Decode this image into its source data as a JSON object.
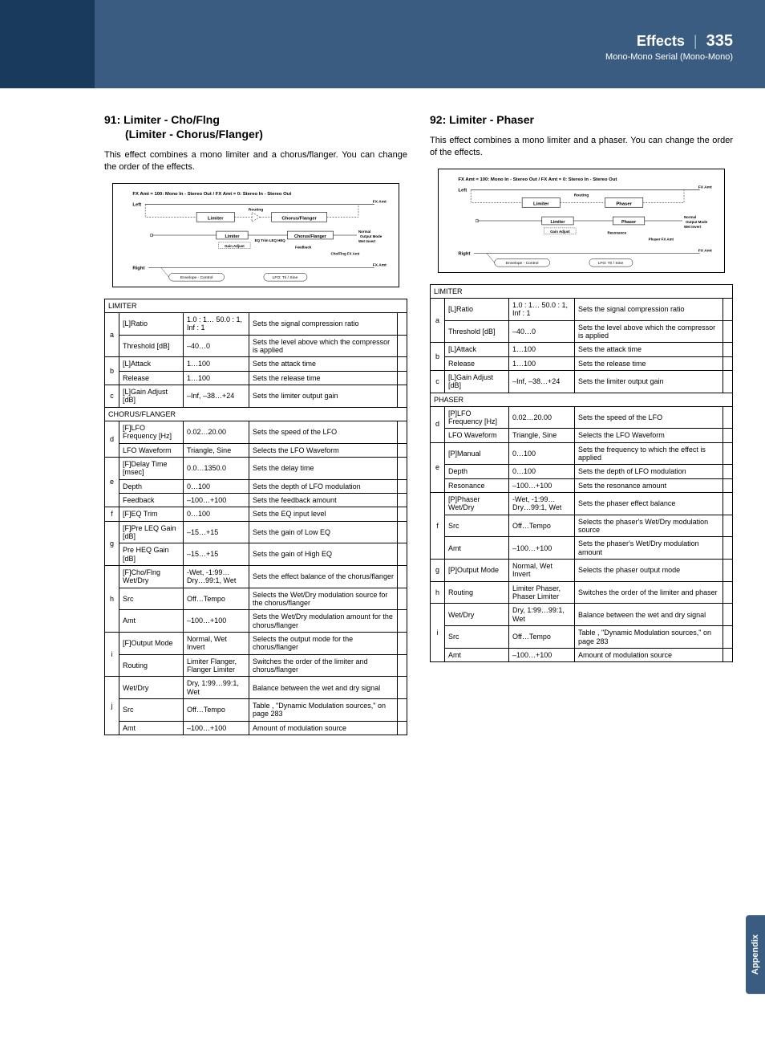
{
  "header": {
    "title": "Effects",
    "page_number": "335",
    "subtitle": "Mono-Mono Serial (Mono-Mono)"
  },
  "appendix_tab": "Appendix",
  "left": {
    "heading_num": "91:",
    "heading_main": "Limiter - Cho/Flng",
    "heading_sub": "(Limiter - Chorus/Flanger)",
    "intro": "This effect combines a mono limiter and a chorus/flanger. You can change the order of the effects.",
    "diagram": {
      "caption": "FX Amt = 100: Mono In - Stereo Out  /  FX Amt = 0: Stereo In - Stereo Out",
      "labels": {
        "left": "Left",
        "right": "Right",
        "limiter": "Limiter",
        "chorus_flanger": "Chorus/Flanger",
        "routing": "Routing",
        "fx_amt": "FX Amt",
        "gain_adjust": "Gain Adjust",
        "eq_trim": "EQ Trim LEQ HEQ",
        "feedback": "Feedback",
        "normal": "Normal",
        "wet_invert": "Wet Invert",
        "output_mode": "Output Mode",
        "choflng_fx": "Cho/Flng FX Amt",
        "envelope": "Envelope - Control",
        "lfo": "LFO: Tri / Sine"
      }
    },
    "tables": [
      {
        "section": "LIMITER",
        "groups": [
          {
            "label": "a",
            "rows": [
              {
                "name": "[L]Ratio",
                "range": "1.0 : 1…\n50.0 : 1, Inf : 1",
                "desc": "Sets the signal compression ratio"
              },
              {
                "name": "Threshold [dB]",
                "range": "–40…0",
                "desc": "Sets the level above which the compressor is applied"
              }
            ]
          },
          {
            "label": "b",
            "rows": [
              {
                "name": "[L]Attack",
                "range": "1…100",
                "desc": "Sets the attack time"
              },
              {
                "name": "Release",
                "range": "1…100",
                "desc": "Sets the release time"
              }
            ]
          },
          {
            "label": "c",
            "rows": [
              {
                "name": "[L]Gain Adjust [dB]",
                "range": "–Inf,\n–38…+24",
                "desc": "Sets the limiter output gain"
              }
            ]
          }
        ]
      },
      {
        "section": "CHORUS/FLANGER",
        "groups": [
          {
            "label": "d",
            "rows": [
              {
                "name": "[F]LFO Frequency [Hz]",
                "range": "0.02…20.00",
                "desc": "Sets the speed of the LFO"
              },
              {
                "name": "LFO Waveform",
                "range": "Triangle, Sine",
                "desc": "Selects the LFO Waveform"
              }
            ]
          },
          {
            "label": "e",
            "rows": [
              {
                "name": "[F]Delay Time [msec]",
                "range": "0.0…1350.0",
                "desc": "Sets the delay time"
              },
              {
                "name": "Depth",
                "range": "0…100",
                "desc": "Sets the depth of LFO modulation"
              },
              {
                "name": "Feedback",
                "range": "–100…+100",
                "desc": "Sets the feedback amount"
              }
            ]
          },
          {
            "label": "f",
            "rows": [
              {
                "name": "[F]EQ Trim",
                "range": "0…100",
                "desc": "Sets the EQ input level"
              }
            ]
          },
          {
            "label": "g",
            "rows": [
              {
                "name": "[F]Pre LEQ Gain [dB]",
                "range": "–15…+15",
                "desc": "Sets the gain of Low EQ"
              },
              {
                "name": "Pre HEQ Gain [dB]",
                "range": "–15…+15",
                "desc": "Sets the gain of High EQ"
              }
            ]
          },
          {
            "label": "h",
            "rows": [
              {
                "name": "[F]Cho/Flng Wet/Dry",
                "range": "-Wet, -1:99…Dry…99:1, Wet",
                "desc": "Sets the effect balance of the chorus/flanger"
              },
              {
                "name": "Src",
                "range": "Off…Tempo",
                "desc": "Selects the Wet/Dry modulation source for the chorus/flanger"
              },
              {
                "name": "Amt",
                "range": "–100…+100",
                "desc": "Sets the Wet/Dry modulation amount for the chorus/flanger"
              }
            ]
          },
          {
            "label": "i",
            "rows": [
              {
                "name": "[F]Output Mode",
                "range": "Normal,\nWet Invert",
                "desc": "Selects the output mode for the chorus/flanger"
              },
              {
                "name": "Routing",
                "range": "Limiter Flanger, Flanger Limiter",
                "desc": "Switches the order of the limiter and chorus/flanger"
              }
            ]
          },
          {
            "label": "j",
            "rows": [
              {
                "name": "Wet/Dry",
                "range": "Dry, 1:99…99:1, Wet",
                "desc": "Balance between the wet and dry signal"
              },
              {
                "name": "Src",
                "range": "Off…Tempo",
                "desc": "Table , \"Dynamic Modulation sources,\" on page 283"
              },
              {
                "name": "Amt",
                "range": "–100…+100",
                "desc": "Amount of modulation source"
              }
            ]
          }
        ]
      }
    ]
  },
  "right": {
    "heading_num": "92:",
    "heading_main": "Limiter - Phaser",
    "intro": "This effect combines a mono limiter and a phaser. You can change the order of the effects.",
    "diagram": {
      "caption": "FX Amt = 100: Mono In - Stereo Out  /  FX Amt = 0: Stereo In - Stereo Out",
      "labels": {
        "left": "Left",
        "right": "Right",
        "limiter": "Limiter",
        "phaser": "Phaser",
        "routing": "Routing",
        "fx_amt": "FX Amt",
        "gain_adjust": "Gain Adjust",
        "resonance": "Resonance",
        "normal": "Normal",
        "wet_invert": "Wet Invert",
        "output_mode": "Output Mode",
        "phaser_fx": "Phaser FX Amt",
        "envelope": "Envelope - Control",
        "lfo": "LFO: Tri / Sine"
      }
    },
    "tables": [
      {
        "section": "LIMITER",
        "groups": [
          {
            "label": "a",
            "rows": [
              {
                "name": "[L]Ratio",
                "range": "1.0 : 1…\n50.0 : 1, Inf : 1",
                "desc": "Sets the signal compression ratio"
              },
              {
                "name": "Threshold [dB]",
                "range": "–40…0",
                "desc": "Sets the level above which the compressor is applied"
              }
            ]
          },
          {
            "label": "b",
            "rows": [
              {
                "name": "[L]Attack",
                "range": "1…100",
                "desc": "Sets the attack time"
              },
              {
                "name": "Release",
                "range": "1…100",
                "desc": "Sets the release time"
              }
            ]
          },
          {
            "label": "c",
            "rows": [
              {
                "name": "[L]Gain Adjust [dB]",
                "range": "–Inf,\n–38…+24",
                "desc": "Sets the limiter output gain"
              }
            ]
          }
        ]
      },
      {
        "section": "PHASER",
        "groups": [
          {
            "label": "d",
            "rows": [
              {
                "name": "[P]LFO Frequency [Hz]",
                "range": "0.02…20.00",
                "desc": "Sets the speed of the LFO"
              },
              {
                "name": "LFO Waveform",
                "range": "Triangle, Sine",
                "desc": "Selects the LFO Waveform"
              }
            ]
          },
          {
            "label": "e",
            "rows": [
              {
                "name": "[P]Manual",
                "range": "0…100",
                "desc": "Sets the frequency to which the effect is applied"
              },
              {
                "name": "Depth",
                "range": "0…100",
                "desc": "Sets the depth of LFO modulation"
              },
              {
                "name": "Resonance",
                "range": "–100…+100",
                "desc": "Sets the resonance amount"
              }
            ]
          },
          {
            "label": "f",
            "rows": [
              {
                "name": "[P]Phaser Wet/Dry",
                "range": "-Wet, -1:99…Dry…99:1, Wet",
                "desc": "Sets the phaser effect balance"
              },
              {
                "name": "Src",
                "range": "Off…Tempo",
                "desc": "Selects the phaser's Wet/Dry modulation source"
              },
              {
                "name": "Amt",
                "range": "–100…+100",
                "desc": "Sets the phaser's Wet/Dry modulation amount"
              }
            ]
          },
          {
            "label": "g",
            "rows": [
              {
                "name": "[P]Output Mode",
                "range": "Normal,\nWet Invert",
                "desc": "Selects the phaser output mode"
              }
            ]
          },
          {
            "label": "h",
            "rows": [
              {
                "name": "Routing",
                "range": "Limiter Phaser, Phaser Limiter",
                "desc": "Switches the order of the limiter and phaser"
              }
            ]
          },
          {
            "label": "i",
            "rows": [
              {
                "name": "Wet/Dry",
                "range": "Dry, 1:99…99:1, Wet",
                "desc": "Balance between the wet and dry signal"
              },
              {
                "name": "Src",
                "range": "Off…Tempo",
                "desc": "Table , \"Dynamic Modulation sources,\" on page 283"
              },
              {
                "name": "Amt",
                "range": "–100…+100",
                "desc": "Amount of modulation source"
              }
            ]
          }
        ]
      }
    ]
  }
}
